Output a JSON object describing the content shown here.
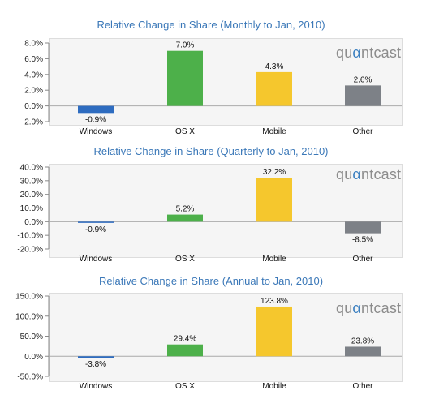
{
  "brand": {
    "prefix": "qu",
    "alpha": "α",
    "suffix": "ntcast"
  },
  "chart_data": [
    {
      "type": "bar",
      "title": "Relative Change in Share (Monthly to Jan, 2010)",
      "categories": [
        "Windows",
        "OS X",
        "Mobile",
        "Other"
      ],
      "values": [
        -0.9,
        7.0,
        4.3,
        2.6
      ],
      "value_labels": [
        "-0.9%",
        "7.0%",
        "4.3%",
        "2.6%"
      ],
      "ylim": [
        -2.0,
        8.0
      ],
      "yticks": [
        -2.0,
        0.0,
        2.0,
        4.0,
        6.0,
        8.0
      ],
      "ytick_labels": [
        "-2.0%",
        "0.0%",
        "2.0%",
        "4.0%",
        "6.0%",
        "8.0%"
      ],
      "colors": [
        "#2e6cc0",
        "#4db04a",
        "#f5c72d",
        "#7d8187"
      ],
      "grid": false,
      "legend": "none"
    },
    {
      "type": "bar",
      "title": "Relative Change in Share (Quarterly to Jan, 2010)",
      "categories": [
        "Windows",
        "OS X",
        "Mobile",
        "Other"
      ],
      "values": [
        -0.9,
        5.2,
        32.2,
        -8.5
      ],
      "value_labels": [
        "-0.9%",
        "5.2%",
        "32.2%",
        "-8.5%"
      ],
      "ylim": [
        -20.0,
        40.0
      ],
      "yticks": [
        -20.0,
        -10.0,
        0.0,
        10.0,
        20.0,
        30.0,
        40.0
      ],
      "ytick_labels": [
        "-20.0%",
        "-10.0%",
        "0.0%",
        "10.0%",
        "20.0%",
        "30.0%",
        "40.0%"
      ],
      "colors": [
        "#2e6cc0",
        "#4db04a",
        "#f5c72d",
        "#7d8187"
      ],
      "grid": false,
      "legend": "none"
    },
    {
      "type": "bar",
      "title": "Relative Change in Share (Annual to Jan, 2010)",
      "categories": [
        "Windows",
        "OS X",
        "Mobile",
        "Other"
      ],
      "values": [
        -3.8,
        29.4,
        123.8,
        23.8
      ],
      "value_labels": [
        "-3.8%",
        "29.4%",
        "123.8%",
        "23.8%"
      ],
      "ylim": [
        -50.0,
        150.0
      ],
      "yticks": [
        -50.0,
        0.0,
        50.0,
        100.0,
        150.0
      ],
      "ytick_labels": [
        "-50.0%",
        "0.0%",
        "50.0%",
        "100.0%",
        "150.0%"
      ],
      "colors": [
        "#2e6cc0",
        "#4db04a",
        "#f5c72d",
        "#7d8187"
      ],
      "grid": false,
      "legend": "none"
    }
  ]
}
